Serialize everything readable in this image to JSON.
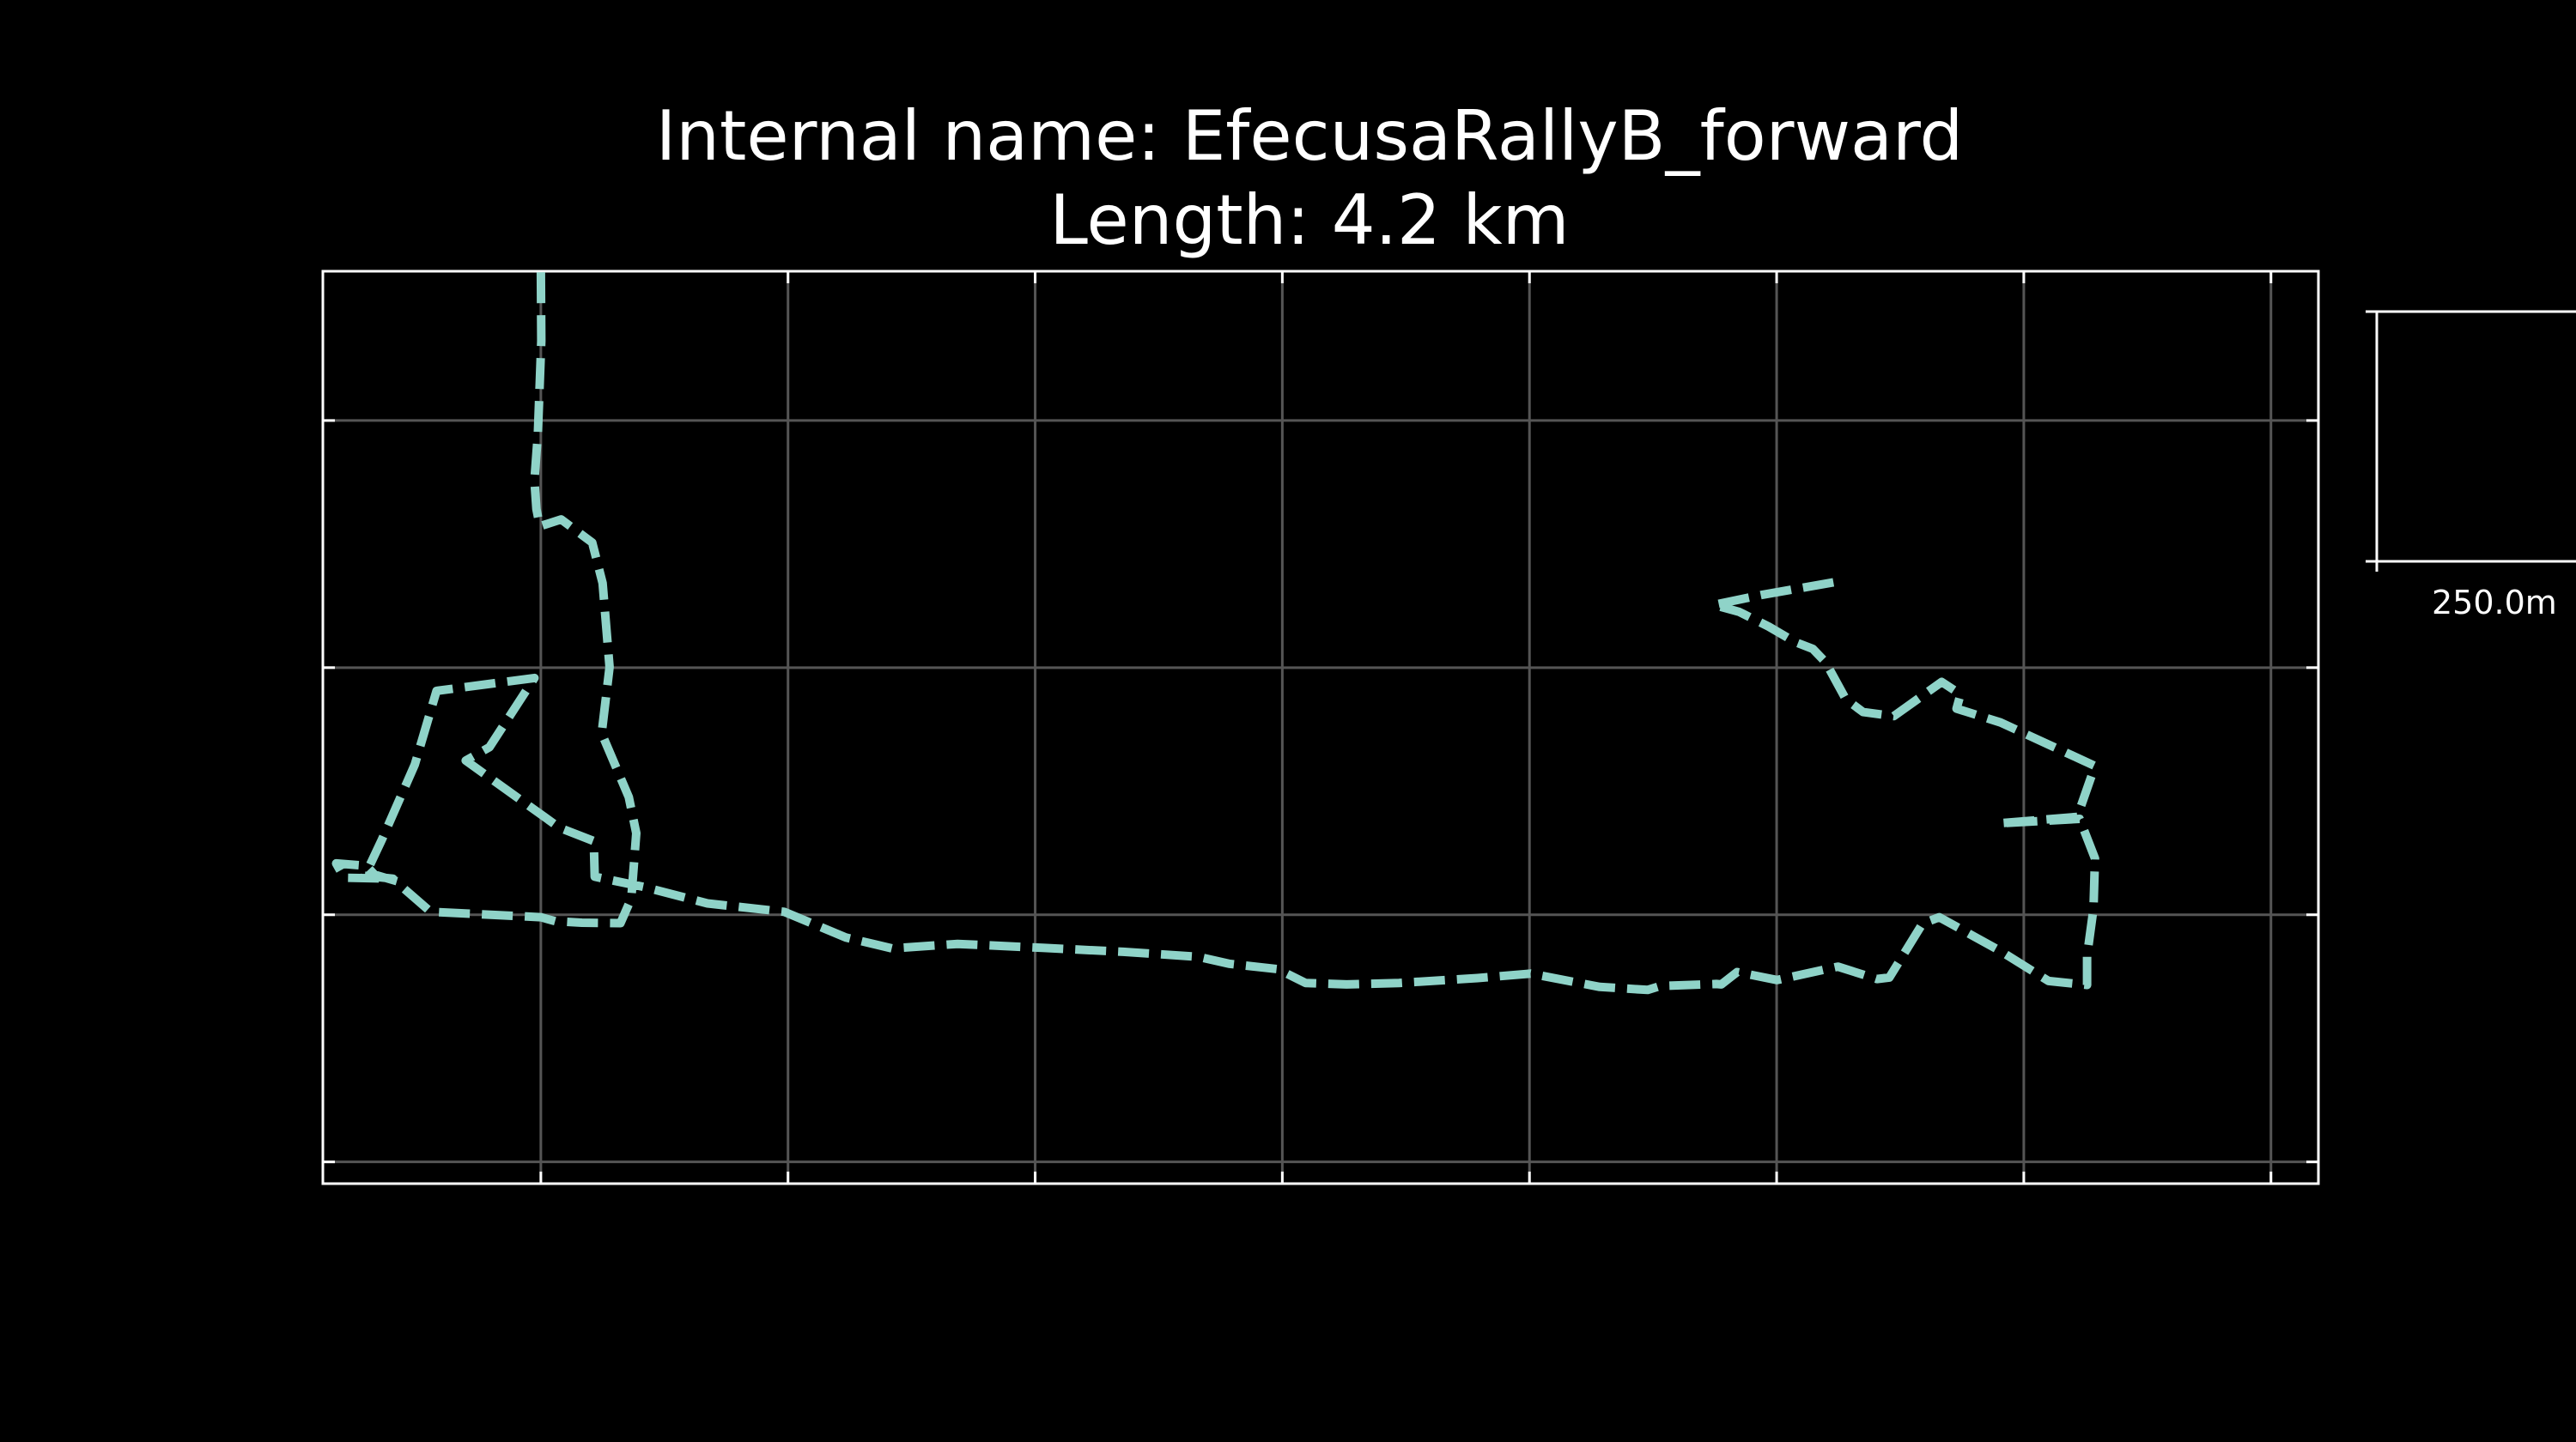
{
  "colors": {
    "background": "#000000",
    "track": "#8fd3c8",
    "grid": "#555555",
    "frame": "#ffffff",
    "text": "#ffffff"
  },
  "chart_data": {
    "type": "line",
    "title": "Internal name: EfecusaRallyB_forward",
    "subtitle": "Length: 4.2 km",
    "xlabel": "",
    "ylabel": "",
    "grid": true,
    "line_style": "dashed",
    "xlim": [
      -441,
      3596
    ],
    "ylim": [
      -1044,
      802
    ],
    "series": [
      {
        "x": [
          0,
          1,
          -6,
          -13,
          -9,
          -2,
          41,
          104,
          125,
          139,
          123,
          178,
          193,
          183,
          161,
          83,
          29,
          0,
          -223,
          -283,
          -285,
          -336,
          -353,
          -414,
          -398,
          -299,
          -356,
          -322,
          -255,
          -211,
          -13,
          -104,
          -152,
          38,
          107,
          109,
          210,
          337,
          492,
          617,
          710,
          843,
          1015,
          1178,
          1330,
          1392,
          1491,
          1547,
          1630,
          1736,
          1895,
          2002,
          2142,
          2239,
          2265,
          2378,
          2388,
          2420,
          2501,
          2624,
          2703,
          2728,
          2795,
          2829,
          2952,
          3050,
          3128,
          3128,
          3141,
          3144,
          3113,
          2950,
          3108,
          3144,
          2953,
          2864,
          2872,
          2834,
          2737,
          2675,
          2640,
          2599,
          2573,
          2537,
          2484,
          2424,
          2373,
          2469,
          2617
        ],
        "y": [
          800,
          661,
          473,
          379,
          321,
          286,
          300,
          253,
          171,
          1,
          -133,
          -262,
          -335,
          -467,
          -517,
          -516,
          -513,
          -505,
          -494,
          -442,
          -434,
          -419,
          -401,
          -396,
          -425,
          -427,
          -421,
          -349,
          -196,
          -47,
          -21,
          -161,
          -188,
          -324,
          -351,
          -423,
          -444,
          -477,
          -494,
          -546,
          -568,
          -559,
          -567,
          -575,
          -585,
          -599,
          -610,
          -638,
          -641,
          -638,
          -628,
          -619,
          -646,
          -652,
          -644,
          -640,
          -641,
          -616,
          -632,
          -605,
          -630,
          -627,
          -518,
          -505,
          -573,
          -634,
          -642,
          -583,
          -487,
          -386,
          -306,
          -315,
          -302,
          -199,
          -111,
          -83,
          -54,
          -29,
          -98,
          -90,
          -64,
          11,
          38,
          52,
          83,
          113,
          127,
          147,
          173
        ]
      }
    ],
    "scale_bar": {
      "label": "250.0m",
      "meters": 250
    }
  }
}
